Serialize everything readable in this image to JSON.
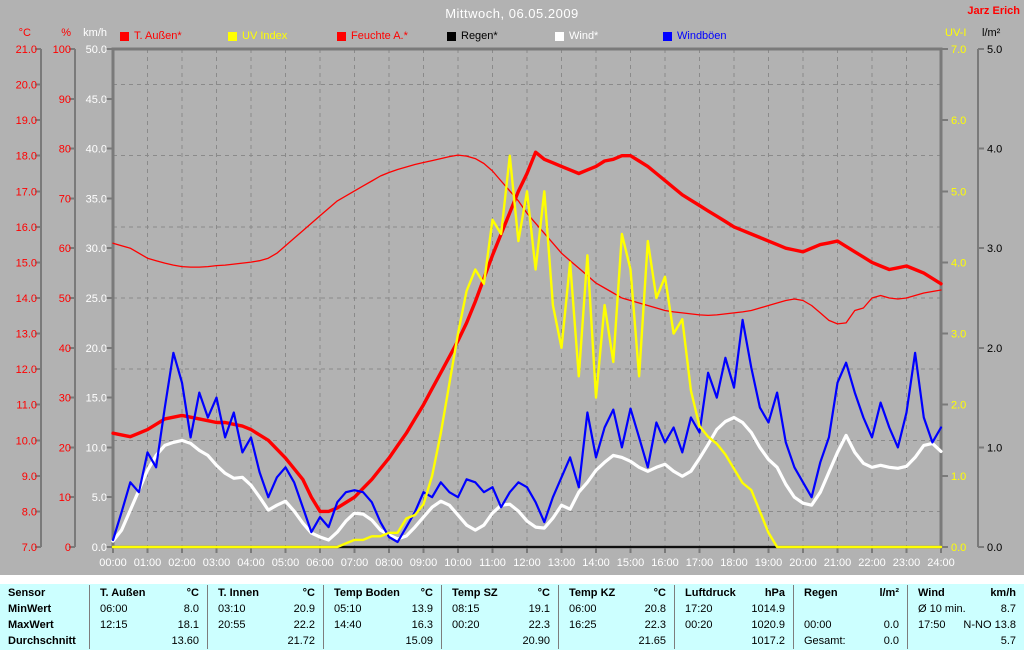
{
  "header": {
    "title": "Mittwoch, 06.05.2009",
    "station": "Jarz Erich"
  },
  "legend": [
    {
      "label": "T. Außen*",
      "color": "#ff0000"
    },
    {
      "label": "UV Index",
      "color": "#ffff00"
    },
    {
      "label": "Feuchte A.*",
      "color": "#ff0000"
    },
    {
      "label": "Regen*",
      "color": "#000000"
    },
    {
      "label": "Wind*",
      "color": "#ffffff"
    },
    {
      "label": "Windböen",
      "color": "#0000ff"
    }
  ],
  "chart_data": {
    "type": "line",
    "title": "Mittwoch, 06.05.2009",
    "grid": {
      "vertical": "hourly",
      "horizontal": "every 2 °C",
      "style": "dashed"
    },
    "x_axis": {
      "min_hour": 0,
      "max_hour": 24,
      "tick_labels": [
        "00:00",
        "01:00",
        "02:00",
        "03:00",
        "04:00",
        "05:00",
        "06:00",
        "07:00",
        "08:00",
        "09:00",
        "10:00",
        "11:00",
        "12:00",
        "13:00",
        "14:00",
        "15:00",
        "16:00",
        "17:00",
        "18:00",
        "19:00",
        "20:00",
        "21:00",
        "22:00",
        "23:00",
        "24:00"
      ]
    },
    "axes": {
      "temp": {
        "unit": "°C",
        "min": 7,
        "max": 21,
        "step": 1,
        "decimals": 1,
        "color": "#ff0000",
        "side": "left"
      },
      "humidity": {
        "unit": "%",
        "min": 0,
        "max": 100,
        "step": 10,
        "decimals": 0,
        "color": "#ff0000",
        "side": "left"
      },
      "wind": {
        "unit": "km/h",
        "min": 0,
        "max": 50,
        "step": 5,
        "decimals": 1,
        "color": "#ffffff",
        "side": "left"
      },
      "uv": {
        "unit": "UV-I",
        "min": 0,
        "max": 7,
        "step": 1,
        "decimals": 1,
        "color": "#ffff00",
        "side": "right"
      },
      "rain": {
        "unit": "l/m²",
        "min": 0,
        "max": 5,
        "step": 1,
        "decimals": 1,
        "color": "#000000",
        "side": "right"
      }
    },
    "series": [
      {
        "name": "regen",
        "label": "Regen*",
        "axis": "rain",
        "color": "#000000",
        "width": 1.8,
        "start_hour": 0,
        "interval_min": 15,
        "values": [
          0,
          0,
          0,
          0,
          0,
          0,
          0,
          0,
          0,
          0,
          0,
          0,
          0,
          0,
          0,
          0,
          0,
          0,
          0,
          0,
          0,
          0,
          0,
          0,
          0,
          0,
          0,
          0,
          0,
          0,
          0,
          0,
          0,
          0,
          0,
          0,
          0,
          0,
          0,
          0,
          0,
          0,
          0,
          0,
          0,
          0,
          0,
          0,
          0,
          0,
          0,
          0,
          0,
          0,
          0,
          0,
          0,
          0,
          0,
          0,
          0,
          0,
          0,
          0,
          0,
          0,
          0,
          0,
          0,
          0,
          0,
          0,
          0,
          0,
          0,
          0,
          0,
          0,
          0,
          0,
          0,
          0,
          0,
          0,
          0,
          0,
          0,
          0,
          0,
          0,
          0,
          0,
          0,
          0,
          0,
          0,
          0
        ]
      },
      {
        "name": "feuchte_aussen",
        "label": "Feuchte A.*",
        "axis": "humidity",
        "color": "#ff0000",
        "width": 1.3,
        "start_hour": 0,
        "interval_min": 15,
        "values": [
          61,
          60.5,
          60,
          59,
          58,
          57.5,
          57,
          56.6,
          56.3,
          56.2,
          56.2,
          56.3,
          56.5,
          56.6,
          56.8,
          57,
          57.2,
          57.5,
          58,
          59,
          60.5,
          62,
          63.5,
          65,
          66.5,
          68,
          69.5,
          70.5,
          71.5,
          72.5,
          73.5,
          74.5,
          75.2,
          75.8,
          76.3,
          76.8,
          77.2,
          77.6,
          78,
          78.4,
          78.7,
          78.5,
          78,
          77,
          75.5,
          73.5,
          71.5,
          69.5,
          67,
          65,
          63,
          61,
          59,
          57.5,
          56,
          54.5,
          53,
          52,
          51,
          50,
          49.5,
          49,
          48.5,
          48,
          47.5,
          47.2,
          47,
          46.8,
          46.6,
          46.5,
          46.6,
          46.8,
          47,
          47.2,
          47.5,
          48,
          48.5,
          49,
          49.5,
          49.8,
          49.5,
          48.5,
          47,
          45.5,
          44.8,
          45,
          47.5,
          48,
          50,
          50.5,
          50,
          49.8,
          50,
          50.5,
          51,
          51.3,
          51.6
        ]
      },
      {
        "name": "t_aussen",
        "label": "T. Außen*",
        "axis": "temp",
        "color": "#ff0000",
        "width": 3.4,
        "start_hour": 0,
        "interval_min": 15,
        "values": [
          10.2,
          10.15,
          10.1,
          10.2,
          10.3,
          10.45,
          10.6,
          10.65,
          10.7,
          10.65,
          10.6,
          10.55,
          10.5,
          10.5,
          10.45,
          10.4,
          10.3,
          10.15,
          10,
          9.75,
          9.5,
          9.2,
          8.9,
          8.4,
          8,
          8,
          8.1,
          8.25,
          8.4,
          8.65,
          8.9,
          9.2,
          9.5,
          9.85,
          10.2,
          10.6,
          11,
          11.45,
          11.9,
          12.35,
          12.8,
          13.3,
          13.9,
          14.55,
          15.2,
          15.8,
          16.4,
          17,
          17.5,
          18.1,
          17.9,
          17.8,
          17.7,
          17.6,
          17.5,
          17.6,
          17.7,
          17.85,
          17.9,
          18,
          18,
          17.85,
          17.7,
          17.5,
          17.3,
          17.1,
          16.9,
          16.75,
          16.6,
          16.45,
          16.3,
          16.15,
          16,
          15.9,
          15.8,
          15.7,
          15.6,
          15.5,
          15.4,
          15.35,
          15.3,
          15.4,
          15.5,
          15.55,
          15.6,
          15.45,
          15.3,
          15.15,
          15,
          14.9,
          14.8,
          14.85,
          14.9,
          14.8,
          14.7,
          14.55,
          14.4
        ]
      },
      {
        "name": "wind",
        "label": "Wind*",
        "axis": "wind",
        "color": "#ffffff",
        "width": 3.2,
        "start_hour": 0,
        "interval_min": 15,
        "values": [
          0.6,
          1.7,
          3.7,
          5.7,
          7.7,
          9.2,
          10.2,
          10.5,
          10.7,
          10.4,
          9.7,
          9.2,
          8.2,
          7.4,
          6.9,
          7,
          6.2,
          5,
          3.7,
          4.2,
          4.6,
          3.6,
          2.4,
          1.4,
          1,
          0.7,
          1.5,
          2.6,
          3.4,
          3.3,
          2.7,
          1.7,
          1.2,
          0.8,
          1.1,
          2,
          3,
          4,
          4.6,
          4.2,
          3.2,
          2.2,
          1.7,
          2.2,
          3.4,
          4.2,
          4.3,
          3.6,
          2.6,
          2,
          1.9,
          2.9,
          4.2,
          3.8,
          5.5,
          6.5,
          7.7,
          8.5,
          9.2,
          9,
          8.6,
          8,
          7.6,
          8,
          8.3,
          7.6,
          7.1,
          7.6,
          8.9,
          10.3,
          11.8,
          12.6,
          13,
          12.5,
          11.5,
          10,
          8.8,
          8,
          6.3,
          5,
          4.4,
          4.2,
          5.5,
          7.5,
          9.5,
          11.2,
          9.5,
          8.4,
          8,
          8.2,
          8,
          7.9,
          8.1,
          9,
          10.2,
          10.4,
          9.6
        ]
      },
      {
        "name": "windboeen",
        "label": "Windböen",
        "axis": "wind",
        "color": "#0000ff",
        "width": 2.2,
        "start_hour": 0,
        "interval_min": 15,
        "values": [
          0.7,
          3.5,
          6.5,
          5.5,
          9.5,
          8,
          14,
          19.5,
          16.5,
          11,
          15.5,
          13,
          15,
          11,
          13.5,
          9.5,
          11,
          7.5,
          5,
          7,
          8,
          6.5,
          4,
          1.5,
          3,
          2,
          4.5,
          5.5,
          5.7,
          5.5,
          4.5,
          2.5,
          1,
          0.5,
          2,
          3.5,
          5.5,
          5,
          6.5,
          5.5,
          5,
          6.8,
          6.5,
          5.5,
          6,
          4,
          5.5,
          6.5,
          6,
          4.5,
          2.5,
          5,
          7,
          9,
          6,
          13.5,
          9,
          12,
          13.8,
          10,
          13.9,
          11,
          8,
          12.5,
          10.5,
          12,
          9.5,
          13,
          11.5,
          17.5,
          15,
          19,
          16,
          22.8,
          18,
          14,
          12.5,
          15.5,
          10.5,
          8,
          6.5,
          5,
          8.5,
          11,
          16.5,
          18.5,
          15.5,
          13,
          11,
          14.5,
          12,
          10,
          13.5,
          19.5,
          13,
          10.5,
          12
        ]
      },
      {
        "name": "uv_index",
        "label": "UV Index",
        "axis": "uv",
        "color": "#ffff00",
        "width": 2.4,
        "start_hour": 0,
        "interval_min": 15,
        "values": [
          0,
          0,
          0,
          0,
          0,
          0,
          0,
          0,
          0,
          0,
          0,
          0,
          0,
          0,
          0,
          0,
          0,
          0,
          0,
          0,
          0,
          0,
          0,
          0,
          0,
          0,
          0,
          0.05,
          0.1,
          0.1,
          0.15,
          0.15,
          0.2,
          0.2,
          0.4,
          0.45,
          0.6,
          1,
          1.6,
          2.3,
          3,
          3.6,
          3.9,
          3.7,
          4.6,
          4.4,
          5.5,
          4.3,
          5,
          3.9,
          5,
          3.4,
          2.8,
          4,
          2.4,
          4.1,
          2.1,
          3.4,
          2.6,
          4.4,
          3.9,
          2.4,
          4.3,
          3.5,
          3.8,
          3,
          3.2,
          2.2,
          1.7,
          1.55,
          1.45,
          1.3,
          1.1,
          0.9,
          0.8,
          0.5,
          0.2,
          0,
          0,
          0,
          0,
          0,
          0,
          0,
          0,
          0,
          0,
          0,
          0,
          0,
          0,
          0,
          0,
          0,
          0,
          0,
          0
        ]
      }
    ]
  },
  "table": {
    "row_labels": [
      "Sensor",
      "MinWert",
      "MaxWert",
      "Durchschnitt"
    ],
    "columns": [
      {
        "name": "T. Außen",
        "unit": "°C",
        "min": [
          "06:00",
          "8.0"
        ],
        "max": [
          "12:15",
          "18.1"
        ],
        "avg": [
          "",
          "13.60"
        ]
      },
      {
        "name": "T. Innen",
        "unit": "°C",
        "min": [
          "03:10",
          "20.9"
        ],
        "max": [
          "20:55",
          "22.2"
        ],
        "avg": [
          "",
          "21.72"
        ]
      },
      {
        "name": "Temp Boden",
        "unit": "°C",
        "min": [
          "05:10",
          "13.9"
        ],
        "max": [
          "14:40",
          "16.3"
        ],
        "avg": [
          "",
          "15.09"
        ]
      },
      {
        "name": "Temp SZ",
        "unit": "°C",
        "min": [
          "08:15",
          "19.1"
        ],
        "max": [
          "00:20",
          "22.3"
        ],
        "avg": [
          "",
          "20.90"
        ]
      },
      {
        "name": "Temp KZ",
        "unit": "°C",
        "min": [
          "06:00",
          "20.8"
        ],
        "max": [
          "16:25",
          "22.3"
        ],
        "avg": [
          "",
          "21.65"
        ]
      },
      {
        "name": "Luftdruck",
        "unit": "hPa",
        "min": [
          "17:20",
          "1014.9"
        ],
        "max": [
          "00:20",
          "1020.9"
        ],
        "avg": [
          "",
          "1017.2"
        ]
      },
      {
        "name": "Regen",
        "unit": "l/m²",
        "min": [
          "",
          ""
        ],
        "max": [
          "00:00",
          "0.0"
        ],
        "avg": [
          "Gesamt:",
          "0.0"
        ]
      },
      {
        "name": "Wind",
        "unit": "km/h",
        "min": [
          "Ø 10 min.",
          "8.7"
        ],
        "max": [
          "17:50",
          "N-NO 13.8"
        ],
        "avg": [
          "",
          "5.7"
        ]
      }
    ]
  },
  "colors": {
    "background": "#b2b2b2",
    "grid": "#8a8a8a",
    "frame": "#7a7a7a",
    "table_background": "#ccffff",
    "title_text": "#ffffff",
    "station_text": "#ff0000"
  }
}
